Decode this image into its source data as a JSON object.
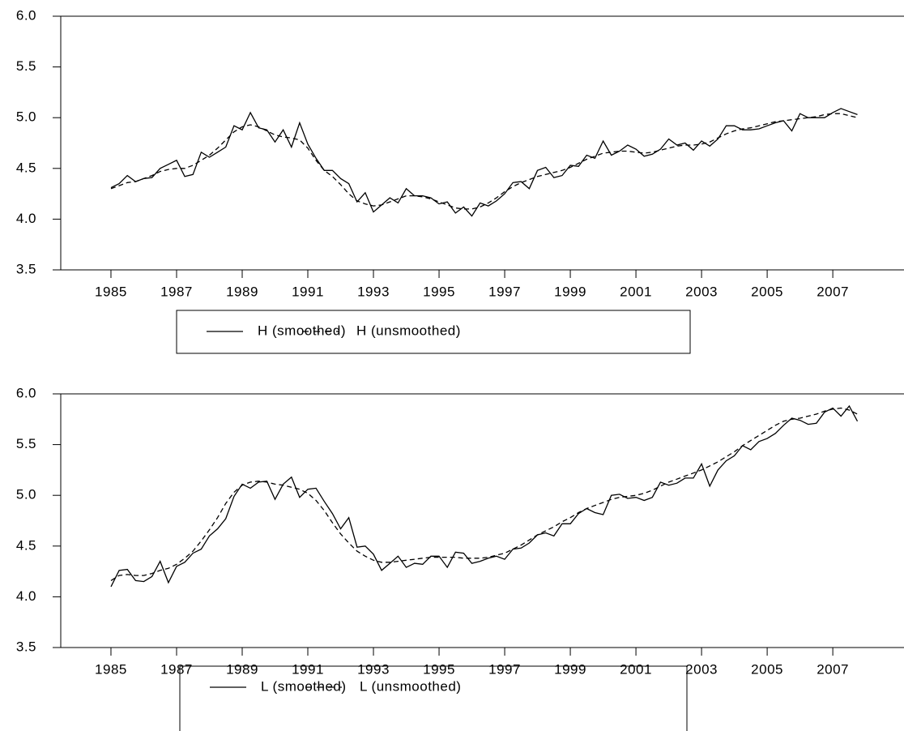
{
  "chart_data": [
    {
      "type": "line",
      "x": [
        1985,
        1985.25,
        1985.5,
        1985.75,
        1986,
        1986.25,
        1986.5,
        1986.75,
        1987,
        1987.25,
        1987.5,
        1987.75,
        1988,
        1988.25,
        1988.5,
        1988.75,
        1989,
        1989.25,
        1989.5,
        1989.75,
        1990,
        1990.25,
        1990.5,
        1990.75,
        1991,
        1991.25,
        1991.5,
        1991.75,
        1992,
        1992.25,
        1992.5,
        1992.75,
        1993,
        1993.25,
        1993.5,
        1993.75,
        1994,
        1994.25,
        1994.5,
        1994.75,
        1995,
        1995.25,
        1995.5,
        1995.75,
        1996,
        1996.25,
        1996.5,
        1996.75,
        1997,
        1997.25,
        1997.5,
        1997.75,
        1998,
        1998.25,
        1998.5,
        1998.75,
        1999,
        1999.25,
        1999.5,
        1999.75,
        2000,
        2000.25,
        2000.5,
        2000.75,
        2001,
        2001.25,
        2001.5,
        2001.75,
        2002,
        2002.25,
        2002.5,
        2002.75,
        2003,
        2003.25,
        2003.5,
        2003.75,
        2004,
        2004.25,
        2004.5,
        2004.75,
        2005,
        2005.25,
        2005.5,
        2005.75,
        2006,
        2006.25,
        2006.5,
        2006.75,
        2007,
        2007.25,
        2007.5,
        2007.75
      ],
      "series": [
        {
          "name": "H (smoothed)",
          "color": "#000000",
          "line_style": "solid",
          "values": [
            4.31,
            4.35,
            4.43,
            4.37,
            4.4,
            4.41,
            4.5,
            4.54,
            4.58,
            4.42,
            4.44,
            4.66,
            4.61,
            4.66,
            4.71,
            4.92,
            4.88,
            5.05,
            4.9,
            4.88,
            4.76,
            4.88,
            4.71,
            4.95,
            4.74,
            4.6,
            4.48,
            4.48,
            4.4,
            4.35,
            4.17,
            4.26,
            4.07,
            4.14,
            4.21,
            4.16,
            4.3,
            4.23,
            4.23,
            4.21,
            4.15,
            4.17,
            4.06,
            4.12,
            4.03,
            4.16,
            4.13,
            4.18,
            4.25,
            4.36,
            4.37,
            4.3,
            4.48,
            4.51,
            4.41,
            4.43,
            4.53,
            4.52,
            4.63,
            4.6,
            4.77,
            4.63,
            4.67,
            4.73,
            4.69,
            4.62,
            4.64,
            4.69,
            4.79,
            4.73,
            4.75,
            4.68,
            4.77,
            4.72,
            4.79,
            4.92,
            4.92,
            4.88,
            4.88,
            4.89,
            4.92,
            4.95,
            4.97,
            4.87,
            5.04,
            5.0,
            5.0,
            5.0,
            5.05,
            5.09,
            5.06,
            5.03
          ]
        },
        {
          "name": "H (unsmoothed)",
          "color": "#000000",
          "line_style": "dashed",
          "values": [
            4.3,
            4.33,
            4.36,
            4.37,
            4.4,
            4.43,
            4.47,
            4.49,
            4.5,
            4.5,
            4.53,
            4.58,
            4.63,
            4.7,
            4.78,
            4.86,
            4.91,
            4.93,
            4.91,
            4.87,
            4.83,
            4.81,
            4.8,
            4.78,
            4.7,
            4.58,
            4.48,
            4.42,
            4.34,
            4.25,
            4.18,
            4.15,
            4.13,
            4.14,
            4.17,
            4.2,
            4.23,
            4.23,
            4.22,
            4.2,
            4.17,
            4.14,
            4.11,
            4.1,
            4.1,
            4.12,
            4.16,
            4.21,
            4.27,
            4.32,
            4.36,
            4.39,
            4.42,
            4.44,
            4.46,
            4.48,
            4.51,
            4.55,
            4.59,
            4.62,
            4.65,
            4.66,
            4.67,
            4.67,
            4.66,
            4.65,
            4.66,
            4.68,
            4.7,
            4.72,
            4.73,
            4.73,
            4.74,
            4.76,
            4.8,
            4.84,
            4.87,
            4.89,
            4.9,
            4.92,
            4.94,
            4.96,
            4.97,
            4.98,
            4.99,
            5.0,
            5.01,
            5.03,
            5.04,
            5.04,
            5.02,
            5.0
          ]
        }
      ],
      "xlim": [
        1983.47,
        2009.17
      ],
      "xticks": [
        1985,
        1987,
        1989,
        1991,
        1993,
        1995,
        1997,
        1999,
        2001,
        2003,
        2005,
        2007
      ],
      "ylim": [
        3.5,
        6.0
      ],
      "yticks": [
        3.5,
        {
          "value": 4,
          "label": "4.0"
        },
        4.5,
        {
          "value": 5,
          "label": "5.0"
        },
        5.5,
        {
          "value": 6,
          "label": "6.0"
        }
      ],
      "grid": false,
      "legend": "bottom"
    },
    {
      "type": "line",
      "x": [
        1985,
        1985.25,
        1985.5,
        1985.75,
        1986,
        1986.25,
        1986.5,
        1986.75,
        1987,
        1987.25,
        1987.5,
        1987.75,
        1988,
        1988.25,
        1988.5,
        1988.75,
        1989,
        1989.25,
        1989.5,
        1989.75,
        1990,
        1990.25,
        1990.5,
        1990.75,
        1991,
        1991.25,
        1991.5,
        1991.75,
        1992,
        1992.25,
        1992.5,
        1992.75,
        1993,
        1993.25,
        1993.5,
        1993.75,
        1994,
        1994.25,
        1994.5,
        1994.75,
        1995,
        1995.25,
        1995.5,
        1995.75,
        1996,
        1996.25,
        1996.5,
        1996.75,
        1997,
        1997.25,
        1997.5,
        1997.75,
        1998,
        1998.25,
        1998.5,
        1998.75,
        1999,
        1999.25,
        1999.5,
        1999.75,
        2000,
        2000.25,
        2000.5,
        2000.75,
        2001,
        2001.25,
        2001.5,
        2001.75,
        2002,
        2002.25,
        2002.5,
        2002.75,
        2003,
        2003.25,
        2003.5,
        2003.75,
        2004,
        2004.25,
        2004.5,
        2004.75,
        2005,
        2005.25,
        2005.5,
        2005.75,
        2006,
        2006.25,
        2006.5,
        2006.75,
        2007,
        2007.25,
        2007.5,
        2007.75
      ],
      "series": [
        {
          "name": "L (smoothed)",
          "color": "#000000",
          "line_style": "solid",
          "values": [
            4.1,
            4.26,
            4.27,
            4.16,
            4.15,
            4.2,
            4.35,
            4.14,
            4.3,
            4.34,
            4.43,
            4.47,
            4.6,
            4.67,
            4.77,
            4.99,
            5.11,
            5.07,
            5.13,
            5.14,
            4.96,
            5.11,
            5.18,
            4.98,
            5.06,
            5.07,
            4.94,
            4.82,
            4.67,
            4.78,
            4.49,
            4.5,
            4.42,
            4.26,
            4.33,
            4.4,
            4.29,
            4.33,
            4.32,
            4.4,
            4.4,
            4.29,
            4.44,
            4.43,
            4.33,
            4.35,
            4.38,
            4.4,
            4.37,
            4.47,
            4.48,
            4.53,
            4.61,
            4.63,
            4.6,
            4.72,
            4.72,
            4.82,
            4.87,
            4.83,
            4.81,
            5.0,
            5.01,
            4.97,
            4.98,
            4.95,
            4.98,
            5.13,
            5.1,
            5.12,
            5.17,
            5.17,
            5.31,
            5.09,
            5.25,
            5.34,
            5.39,
            5.49,
            5.45,
            5.53,
            5.56,
            5.61,
            5.69,
            5.76,
            5.74,
            5.7,
            5.71,
            5.82,
            5.86,
            5.78,
            5.88,
            5.73
          ]
        },
        {
          "name": "L (unsmoothed)",
          "color": "#000000",
          "line_style": "dashed",
          "values": [
            4.16,
            4.21,
            4.22,
            4.21,
            4.21,
            4.23,
            4.26,
            4.28,
            4.32,
            4.38,
            4.45,
            4.55,
            4.66,
            4.78,
            4.92,
            5.03,
            5.1,
            5.13,
            5.14,
            5.13,
            5.11,
            5.1,
            5.08,
            5.06,
            5.02,
            4.95,
            4.85,
            4.73,
            4.62,
            4.53,
            4.45,
            4.4,
            4.36,
            4.34,
            4.34,
            4.35,
            4.36,
            4.37,
            4.38,
            4.39,
            4.39,
            4.39,
            4.39,
            4.38,
            4.38,
            4.38,
            4.39,
            4.41,
            4.43,
            4.47,
            4.51,
            4.56,
            4.61,
            4.65,
            4.69,
            4.74,
            4.78,
            4.83,
            4.87,
            4.9,
            4.93,
            4.96,
            4.98,
            4.99,
            5.0,
            5.02,
            5.05,
            5.09,
            5.13,
            5.16,
            5.19,
            5.22,
            5.25,
            5.29,
            5.33,
            5.38,
            5.43,
            5.49,
            5.54,
            5.59,
            5.64,
            5.69,
            5.73,
            5.75,
            5.76,
            5.78,
            5.8,
            5.83,
            5.85,
            5.86,
            5.84,
            5.8
          ]
        }
      ],
      "xlim": [
        1983.47,
        2009.17
      ],
      "xticks": [
        1985,
        1987,
        1989,
        1991,
        1993,
        1995,
        1997,
        1999,
        2001,
        2003,
        2005,
        2007
      ],
      "ylim": [
        3.5,
        6.0
      ],
      "yticks": [
        3.5,
        {
          "value": 4,
          "label": "4.0"
        },
        4.5,
        {
          "value": 5,
          "label": "5.0"
        },
        5.5,
        {
          "value": 6,
          "label": "6.0"
        }
      ],
      "grid": false,
      "legend": "bottom"
    }
  ]
}
